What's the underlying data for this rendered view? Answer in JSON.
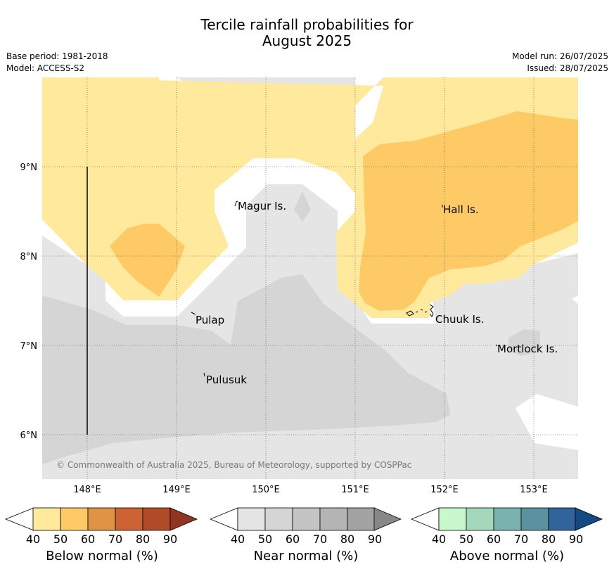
{
  "header": {
    "title_line1": "Tercile rainfall probabilities for",
    "title_line2": "August 2025",
    "base_period": "Base period: 1981-2018",
    "model": "Model: ACCESS-S2",
    "model_run": "Model run: 26/07/2025",
    "issued": "Issued: 28/07/2025"
  },
  "map": {
    "lon_range": [
      147.5,
      153.5
    ],
    "lat_range": [
      5.5,
      10.0
    ],
    "lon_ticks": [
      "148°E",
      "149°E",
      "150°E",
      "151°E",
      "152°E",
      "153°E"
    ],
    "lat_ticks": [
      "9°N",
      "8°N",
      "7°N",
      "6°N"
    ],
    "places": [
      {
        "name": "Magur Is."
      },
      {
        "name": "Hall Is."
      },
      {
        "name": "Pulap"
      },
      {
        "name": "Chuuk Is."
      },
      {
        "name": "Mortlock Is."
      },
      {
        "name": "Pulusuk"
      }
    ],
    "copyright": "© Commonwealth of Australia 2025, Bureau of Meteorology, supported by COSPPac",
    "colors": {
      "below_40": "#fee99d",
      "below_50": "#fdca65",
      "near_40": "#e5e5e5",
      "near_50": "#d5d5d5"
    }
  },
  "legends": [
    {
      "label": "Below normal (%)",
      "ticks": [
        "40",
        "50",
        "60",
        "70",
        "80",
        "90"
      ],
      "colors": [
        "#fee99d",
        "#fdca65",
        "#e09345",
        "#cd6232",
        "#b14b27",
        "#8f3520"
      ]
    },
    {
      "label": "Near normal (%)",
      "ticks": [
        "40",
        "50",
        "60",
        "70",
        "80",
        "90"
      ],
      "colors": [
        "#e5e5e5",
        "#d5d5d5",
        "#c4c4c4",
        "#b4b4b4",
        "#a3a3a3",
        "#878787"
      ]
    },
    {
      "label": "Above normal (%)",
      "ticks": [
        "40",
        "50",
        "60",
        "70",
        "80",
        "90"
      ],
      "colors": [
        "#c9f8cd",
        "#a3d8bd",
        "#7ab2ad",
        "#5a929f",
        "#31649a",
        "#134a84"
      ]
    }
  ]
}
